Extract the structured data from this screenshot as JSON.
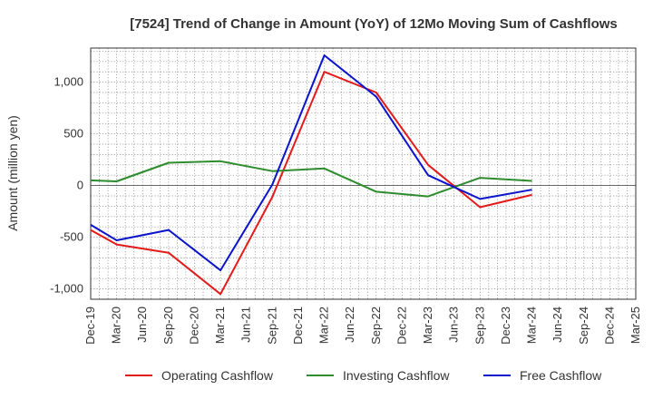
{
  "chart_data": {
    "type": "line",
    "title": "[7524]  Trend of Change in Amount (YoY) of 12Mo Moving Sum of Cashflows",
    "xlabel": "",
    "ylabel": "Amount (million yen)",
    "ylim": [
      -1100,
      1330
    ],
    "yticks": [
      1000,
      500,
      0,
      -500,
      -1000
    ],
    "ytick_labels": [
      "1,000",
      "500",
      "0",
      "-500",
      "-1,000"
    ],
    "categories": [
      "Dec-19",
      "Mar-20",
      "Jun-20",
      "Sep-20",
      "Dec-20",
      "Mar-21",
      "Jun-21",
      "Sep-21",
      "Dec-21",
      "Mar-22",
      "Jun-22",
      "Sep-22",
      "Dec-22",
      "Mar-23",
      "Jun-23",
      "Sep-23",
      "Dec-23",
      "Mar-24",
      "Jun-24",
      "Sep-24",
      "Dec-24",
      "Mar-25"
    ],
    "grid": true,
    "legend_position": "bottom",
    "series": [
      {
        "name": "Operating Cashflow",
        "color": "#e31a1a",
        "values": [
          -430,
          -570,
          null,
          -650,
          null,
          -1050,
          null,
          -110,
          null,
          1100,
          null,
          900,
          null,
          200,
          null,
          -210,
          null,
          -90,
          null,
          null,
          null,
          null
        ]
      },
      {
        "name": "Investing Cashflow",
        "color": "#2e8b2e",
        "values": [
          50,
          40,
          null,
          220,
          null,
          235,
          null,
          140,
          null,
          165,
          null,
          -60,
          null,
          -105,
          null,
          75,
          null,
          45,
          null,
          null,
          null,
          null
        ]
      },
      {
        "name": "Free Cashflow",
        "color": "#0a14cc",
        "values": [
          -380,
          -530,
          null,
          -430,
          null,
          -820,
          null,
          10,
          null,
          1260,
          null,
          860,
          null,
          100,
          null,
          -130,
          null,
          -40,
          null,
          null,
          null,
          null
        ]
      }
    ]
  }
}
